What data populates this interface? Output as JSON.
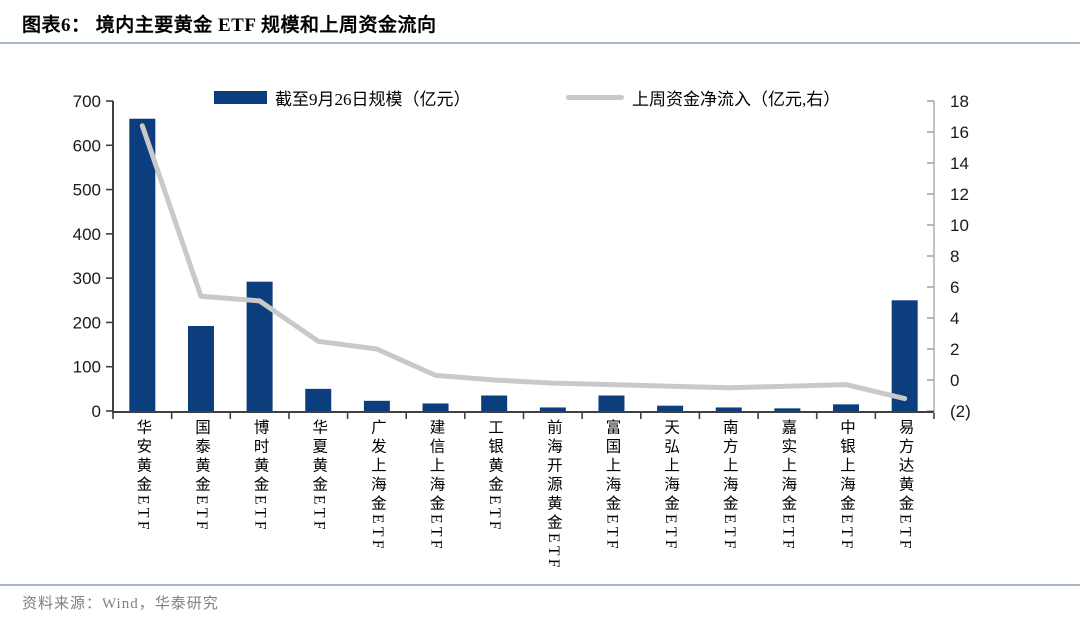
{
  "header": {
    "title": "图表6：  境内主要黄金 ETF 规模和上周资金流向"
  },
  "chart_data": {
    "type": "bar",
    "title": "境内主要黄金ETF规模和上周资金流向",
    "categories": [
      "华安黄金ETF",
      "国泰黄金ETF",
      "博时黄金ETF",
      "华夏黄金ETF",
      "广发上海金ETF",
      "建信上海金ETF",
      "工银黄金ETF",
      "前海开源黄金ETF",
      "富国上海金ETF",
      "天弘上海金ETF",
      "南方上海金ETF",
      "嘉实上海金ETF",
      "中银上海金ETF",
      "易方达黄金ETF"
    ],
    "series": [
      {
        "name": "截至9月26日规模（亿元）",
        "type": "bar",
        "axis": "left",
        "color": "#0c3d7c",
        "values": [
          660,
          192,
          292,
          50,
          23,
          17,
          35,
          8,
          35,
          12,
          8,
          6,
          15,
          250
        ]
      },
      {
        "name": "上周资金净流入（亿元,右）",
        "type": "line",
        "axis": "right",
        "color": "#c9c9c9",
        "values": [
          16.4,
          5.4,
          5.1,
          2.5,
          2.0,
          0.3,
          0.0,
          -0.2,
          -0.3,
          -0.4,
          -0.5,
          -0.4,
          -0.3,
          -1.2
        ]
      }
    ],
    "left_axis": {
      "min": 0,
      "max": 700,
      "step": 100,
      "tick_labels": [
        "0",
        "100",
        "200",
        "300",
        "400",
        "500",
        "600",
        "700"
      ]
    },
    "right_axis": {
      "min": -2,
      "max": 18,
      "step": 2,
      "tick_labels": [
        "(2)",
        "0",
        "2",
        "4",
        "6",
        "8",
        "10",
        "12",
        "14",
        "16",
        "18"
      ]
    },
    "grid": false,
    "legend_position": "top"
  },
  "footer": {
    "source": "资料来源：Wind，华泰研究"
  }
}
